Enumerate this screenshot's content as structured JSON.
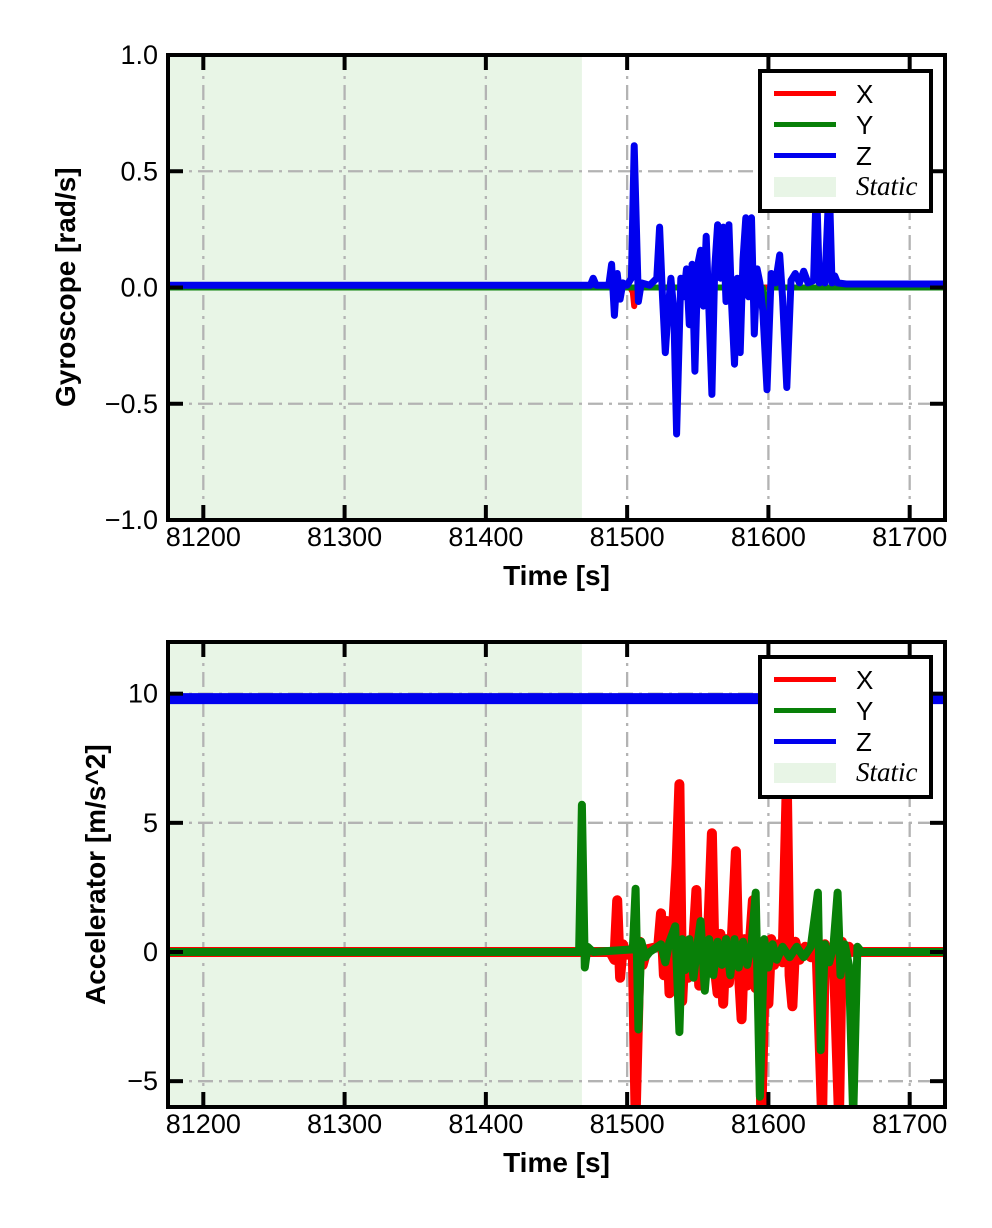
{
  "figure": {
    "background": "#ffffff"
  },
  "chart_data": [
    {
      "name": "gyroscope",
      "type": "line",
      "title": "",
      "xlabel": "Time [s]",
      "ylabel": "Gyroscope [rad/s]",
      "xlim": [
        81175,
        81725
      ],
      "ylim": [
        -1.0,
        1.0
      ],
      "xticks": [
        81200,
        81300,
        81400,
        81500,
        81600,
        81700
      ],
      "xtick_labels": [
        "81200",
        "81300",
        "81400",
        "81500",
        "81600",
        "81700"
      ],
      "yticks": [
        1.0,
        0.5,
        0.0,
        -0.5,
        -1.0
      ],
      "ytick_labels": [
        "1.0",
        "0.5",
        "0.0",
        "−0.5",
        "−1.0"
      ],
      "grid": {
        "style": "dash-dot",
        "color": "#b3b3b3",
        "on": true
      },
      "static_region": {
        "start": 81175,
        "end": 81468,
        "color": "#e8f5e6",
        "label": "Static"
      },
      "legend": {
        "position": "upper right",
        "entries": [
          {
            "label": "X",
            "type": "line",
            "color": "#ff0000",
            "italic": false
          },
          {
            "label": "Y",
            "type": "line",
            "color": "#088008",
            "italic": false
          },
          {
            "label": "Z",
            "type": "line",
            "color": "#0000ee",
            "italic": false
          },
          {
            "label": "Static",
            "type": "patch",
            "color": "#e8f5e6",
            "italic": true
          }
        ]
      },
      "series": [
        {
          "name": "X",
          "color": "#ff0000",
          "points": [
            [
              81175,
              0
            ],
            [
              81502,
              0
            ],
            [
              81504,
              -0.02
            ],
            [
              81505,
              -0.08
            ],
            [
              81507,
              0
            ],
            [
              81725,
              0
            ]
          ]
        },
        {
          "name": "Y",
          "color": "#088008",
          "points": [
            [
              81175,
              0
            ],
            [
              81549,
              0
            ],
            [
              81552,
              0.07
            ],
            [
              81554,
              0
            ],
            [
              81559,
              -0.04
            ],
            [
              81561,
              0
            ],
            [
              81596,
              0
            ],
            [
              81598,
              -0.14
            ],
            [
              81601,
              0
            ],
            [
              81725,
              0
            ]
          ]
        },
        {
          "name": "Z",
          "color": "#0000ee",
          "points": [
            [
              81175,
              0.01
            ],
            [
              81474,
              0.01
            ],
            [
              81476,
              0.04
            ],
            [
              81478,
              0.01
            ],
            [
              81487,
              0.01
            ],
            [
              81489,
              0.1
            ],
            [
              81491,
              -0.12
            ],
            [
              81493,
              0.06
            ],
            [
              81495,
              -0.05
            ],
            [
              81497,
              0.02
            ],
            [
              81500,
              0.01
            ],
            [
              81503,
              0.04
            ],
            [
              81505,
              0.61
            ],
            [
              81508,
              -0.06
            ],
            [
              81510,
              0.02
            ],
            [
              81516,
              0.01
            ],
            [
              81521,
              0.04
            ],
            [
              81523,
              0.26
            ],
            [
              81525,
              -0.04
            ],
            [
              81527,
              -0.28
            ],
            [
              81529,
              -0.1
            ],
            [
              81531,
              0.04
            ],
            [
              81533,
              -0.1
            ],
            [
              81535,
              -0.63
            ],
            [
              81538,
              0.04
            ],
            [
              81540,
              -0.04
            ],
            [
              81542,
              0.08
            ],
            [
              81544,
              -0.16
            ],
            [
              81546,
              0.1
            ],
            [
              81548,
              -0.36
            ],
            [
              81550,
              0.1
            ],
            [
              81552,
              0.16
            ],
            [
              81554,
              -0.08
            ],
            [
              81556,
              0.22
            ],
            [
              81558,
              -0.12
            ],
            [
              81560,
              -0.46
            ],
            [
              81562,
              0.08
            ],
            [
              81564,
              0.27
            ],
            [
              81566,
              0.04
            ],
            [
              81568,
              0.26
            ],
            [
              81570,
              -0.06
            ],
            [
              81572,
              0.27
            ],
            [
              81574,
              -0.08
            ],
            [
              81576,
              -0.33
            ],
            [
              81578,
              0.04
            ],
            [
              81580,
              -0.28
            ],
            [
              81582,
              0.12
            ],
            [
              81584,
              0.3
            ],
            [
              81586,
              -0.04
            ],
            [
              81588,
              0.3
            ],
            [
              81590,
              -0.2
            ],
            [
              81592,
              0.08
            ],
            [
              81594,
              0.02
            ],
            [
              81596,
              -0.1
            ],
            [
              81599,
              -0.44
            ],
            [
              81602,
              0.06
            ],
            [
              81605,
              0.02
            ],
            [
              81608,
              0.14
            ],
            [
              81610,
              -0.04
            ],
            [
              81613,
              -0.43
            ],
            [
              81616,
              0.03
            ],
            [
              81619,
              0.06
            ],
            [
              81622,
              0.02
            ],
            [
              81625,
              0.07
            ],
            [
              81628,
              0.02
            ],
            [
              81632,
              0.03
            ],
            [
              81634,
              0.46
            ],
            [
              81636,
              0.02
            ],
            [
              81638,
              0.07
            ],
            [
              81640,
              0.02
            ],
            [
              81643,
              0.46
            ],
            [
              81645,
              0.02
            ],
            [
              81647,
              0.05
            ],
            [
              81649,
              0.02
            ],
            [
              81655,
              0.015
            ],
            [
              81725,
              0.015
            ]
          ]
        }
      ]
    },
    {
      "name": "accelerator",
      "type": "line",
      "title": "",
      "xlabel": "Time [s]",
      "ylabel": "Accelerator [m/s^2]",
      "xlim": [
        81175,
        81725
      ],
      "ylim": [
        -6,
        12
      ],
      "xticks": [
        81200,
        81300,
        81400,
        81500,
        81600,
        81700
      ],
      "xtick_labels": [
        "81200",
        "81300",
        "81400",
        "81500",
        "81600",
        "81700"
      ],
      "yticks": [
        10,
        5,
        0,
        -5
      ],
      "ytick_labels": [
        "10",
        "5",
        "0",
        "−5"
      ],
      "grid": {
        "style": "dash-dot",
        "color": "#b3b3b3",
        "on": true
      },
      "static_region": {
        "start": 81175,
        "end": 81468,
        "color": "#e8f5e6",
        "label": "Static"
      },
      "legend": {
        "position": "upper right",
        "entries": [
          {
            "label": "X",
            "type": "line",
            "color": "#ff0000",
            "italic": false
          },
          {
            "label": "Y",
            "type": "line",
            "color": "#088008",
            "italic": false
          },
          {
            "label": "Z",
            "type": "line",
            "color": "#0000ee",
            "italic": false
          },
          {
            "label": "Static",
            "type": "patch",
            "color": "#e8f5e6",
            "italic": true
          }
        ]
      },
      "series": [
        {
          "name": "X",
          "color": "#ff0000",
          "points": [
            [
              81175,
              0
            ],
            [
              81488,
              0
            ],
            [
              81491,
              -0.3
            ],
            [
              81493,
              2.0
            ],
            [
              81495,
              -1.0
            ],
            [
              81497,
              0.3
            ],
            [
              81500,
              -0.1
            ],
            [
              81504,
              0.1
            ],
            [
              81506,
              -6.4
            ],
            [
              81509,
              0.4
            ],
            [
              81511,
              -0.5
            ],
            [
              81514,
              0.1
            ],
            [
              81522,
              0.2
            ],
            [
              81524,
              1.5
            ],
            [
              81526,
              -0.9
            ],
            [
              81528,
              1.2
            ],
            [
              81530,
              -1.6
            ],
            [
              81532,
              0.4
            ],
            [
              81535,
              3.4
            ],
            [
              81537,
              6.5
            ],
            [
              81539,
              -1.9
            ],
            [
              81541,
              0.4
            ],
            [
              81543,
              -1.0
            ],
            [
              81546,
              -0.4
            ],
            [
              81549,
              2.4
            ],
            [
              81551,
              -1.3
            ],
            [
              81553,
              0.5
            ],
            [
              81555,
              -0.6
            ],
            [
              81557,
              0.3
            ],
            [
              81560,
              4.6
            ],
            [
              81562,
              -0.6
            ],
            [
              81564,
              -1.6
            ],
            [
              81566,
              0.7
            ],
            [
              81568,
              -2.0
            ],
            [
              81570,
              0.5
            ],
            [
              81572,
              -1.2
            ],
            [
              81574,
              0.4
            ],
            [
              81577,
              3.9
            ],
            [
              81579,
              -0.7
            ],
            [
              81581,
              -2.6
            ],
            [
              81583,
              0.5
            ],
            [
              81585,
              -1.3
            ],
            [
              81587,
              0.4
            ],
            [
              81589,
              2.0
            ],
            [
              81591,
              -1.4
            ],
            [
              81593,
              0.3
            ],
            [
              81595,
              -6.4
            ],
            [
              81598,
              0.4
            ],
            [
              81600,
              -2.0
            ],
            [
              81602,
              0.5
            ],
            [
              81604,
              -0.5
            ],
            [
              81607,
              0.3
            ],
            [
              81610,
              -0.4
            ],
            [
              81613,
              6.5
            ],
            [
              81615,
              -0.9
            ],
            [
              81617,
              -2.1
            ],
            [
              81619,
              0.4
            ],
            [
              81622,
              -0.3
            ],
            [
              81626,
              0.2
            ],
            [
              81630,
              -0.2
            ],
            [
              81634,
              0.3
            ],
            [
              81638,
              -6.4
            ],
            [
              81640,
              0.3
            ],
            [
              81643,
              -0.4
            ],
            [
              81646,
              0.2
            ],
            [
              81650,
              -6.4
            ],
            [
              81652,
              0.4
            ],
            [
              81654,
              -0.5
            ],
            [
              81657,
              0.2
            ],
            [
              81660,
              0
            ],
            [
              81725,
              0
            ]
          ]
        },
        {
          "name": "Y",
          "color": "#088008",
          "points": [
            [
              81175,
              0
            ],
            [
              81466,
              0
            ],
            [
              81468,
              5.7
            ],
            [
              81470,
              -0.6
            ],
            [
              81472,
              0.2
            ],
            [
              81476,
              0
            ],
            [
              81504,
              0.1
            ],
            [
              81506,
              2.45
            ],
            [
              81508,
              -3.0
            ],
            [
              81510,
              0.4
            ],
            [
              81513,
              -0.2
            ],
            [
              81516,
              0
            ],
            [
              81524,
              0.3
            ],
            [
              81527,
              -0.4
            ],
            [
              81530,
              0.4
            ],
            [
              81534,
              1.0
            ],
            [
              81537,
              -3.1
            ],
            [
              81539,
              0.5
            ],
            [
              81541,
              -0.7
            ],
            [
              81544,
              0.5
            ],
            [
              81547,
              -1.0
            ],
            [
              81550,
              0.4
            ],
            [
              81552,
              1.2
            ],
            [
              81555,
              -1.5
            ],
            [
              81558,
              0.5
            ],
            [
              81561,
              -0.9
            ],
            [
              81564,
              0.4
            ],
            [
              81567,
              -0.5
            ],
            [
              81570,
              0.5
            ],
            [
              81573,
              -0.9
            ],
            [
              81576,
              0.5
            ],
            [
              81579,
              -0.6
            ],
            [
              81582,
              0.4
            ],
            [
              81585,
              -0.5
            ],
            [
              81588,
              0.3
            ],
            [
              81591,
              2.3
            ],
            [
              81594,
              -5.6
            ],
            [
              81597,
              0.5
            ],
            [
              81600,
              -0.6
            ],
            [
              81603,
              0.3
            ],
            [
              81606,
              -0.3
            ],
            [
              81610,
              0.2
            ],
            [
              81615,
              -0.2
            ],
            [
              81620,
              0.2
            ],
            [
              81625,
              -0.2
            ],
            [
              81630,
              0.2
            ],
            [
              81635,
              2.3
            ],
            [
              81637,
              -3.8
            ],
            [
              81640,
              0.3
            ],
            [
              81643,
              -0.4
            ],
            [
              81646,
              0.2
            ],
            [
              81649,
              2.3
            ],
            [
              81651,
              -0.9
            ],
            [
              81654,
              0.3
            ],
            [
              81657,
              -0.5
            ],
            [
              81660,
              -6.4
            ],
            [
              81663,
              0.2
            ],
            [
              81666,
              0
            ],
            [
              81725,
              0
            ]
          ]
        },
        {
          "name": "Z",
          "color": "#0000ee",
          "points": [
            [
              81175,
              9.81
            ],
            [
              81725,
              9.81
            ]
          ]
        }
      ]
    }
  ]
}
